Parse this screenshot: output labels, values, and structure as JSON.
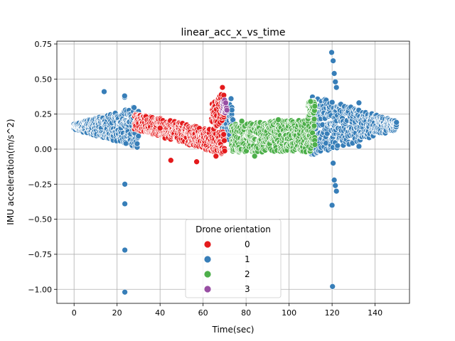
{
  "chart_data": {
    "type": "scatter",
    "title": "linear_acc_x_vs_time",
    "xlabel": "Time(sec)",
    "ylabel": "IMU acceleration(m/s^2)",
    "xlim": [
      -8,
      156
    ],
    "ylim": [
      -1.1,
      0.77
    ],
    "xticks": [
      0,
      20,
      40,
      60,
      80,
      100,
      120,
      140
    ],
    "yticks": [
      -1.0,
      -0.75,
      -0.5,
      -0.25,
      0.0,
      0.25,
      0.5,
      0.75
    ],
    "ytick_labels": [
      "−1.00",
      "−0.75",
      "−0.50",
      "−0.25",
      "0.00",
      "0.25",
      "0.50",
      "0.75"
    ],
    "grid": true,
    "legend": {
      "title": "Drone orientation",
      "placement": "lower-center",
      "entries": [
        "0",
        "1",
        "2",
        "3"
      ]
    },
    "colors": {
      "0": "#e41a1c",
      "1": "#377eb8",
      "2": "#4daf4a",
      "3": "#984ea3"
    },
    "series": [
      {
        "name": "1",
        "segments": [
          {
            "x": [
              0,
              30
            ],
            "base": [
              0.16,
              0.16
            ],
            "spread": [
              0.02,
              0.15
            ]
          },
          {
            "x": [
              68,
              74
            ],
            "base": [
              0.2,
              0.2
            ],
            "spread": [
              0.12,
              0.15
            ]
          },
          {
            "x": [
              110,
              150
            ],
            "base": [
              0.17,
              0.17
            ],
            "spread": [
              0.22,
              0.03
            ]
          }
        ],
        "outliers": [
          [
            14,
            0.41
          ],
          [
            23.5,
            0.37
          ],
          [
            23.5,
            0.38
          ],
          [
            23.6,
            -0.25
          ],
          [
            23.6,
            -0.39
          ],
          [
            23.6,
            -0.72
          ],
          [
            23.6,
            -1.02
          ],
          [
            119.8,
            0.69
          ],
          [
            120.5,
            0.63
          ],
          [
            121,
            0.54
          ],
          [
            121.5,
            0.48
          ],
          [
            122,
            0.44
          ],
          [
            120,
            -0.4
          ],
          [
            120.2,
            -0.98
          ],
          [
            121,
            -0.22
          ],
          [
            121.5,
            -0.26
          ],
          [
            122,
            -0.3
          ],
          [
            120.5,
            -0.1
          ],
          [
            132.5,
            0.33
          ],
          [
            132.5,
            0.02
          ],
          [
            73,
            0.36
          ]
        ]
      },
      {
        "name": "0",
        "segments": [
          {
            "x": [
              28,
              70
            ],
            "base": [
              0.2,
              0.04
            ],
            "spread": [
              0.06,
              0.08
            ]
          },
          {
            "x": [
              64,
              70
            ],
            "base": [
              0.22,
              0.32
            ],
            "spread": [
              0.1,
              0.1
            ]
          }
        ],
        "outliers": [
          [
            69,
            0.44
          ],
          [
            45,
            -0.08
          ],
          [
            57,
            -0.09
          ],
          [
            66,
            -0.05
          ],
          [
            40,
            0.15
          ]
        ]
      },
      {
        "name": "2",
        "segments": [
          {
            "x": [
              73,
              112
            ],
            "base": [
              0.08,
              0.1
            ],
            "spread": [
              0.1,
              0.12
            ]
          },
          {
            "x": [
              109,
              112
            ],
            "base": [
              0.28,
              0.3
            ],
            "spread": [
              0.05,
              0.05
            ]
          }
        ],
        "outliers": [
          [
            84,
            -0.05
          ],
          [
            95,
            0.21
          ],
          [
            110,
            0.34
          ],
          [
            78,
            0.2
          ]
        ]
      },
      {
        "name": "3",
        "segments": [
          {
            "x": [
              69,
              71
            ],
            "base": [
              0.3,
              0.3
            ],
            "spread": [
              0.04,
              0.04
            ]
          }
        ],
        "outliers": [
          [
            70,
            0.35
          ],
          [
            70.5,
            0.33
          ]
        ]
      }
    ]
  }
}
